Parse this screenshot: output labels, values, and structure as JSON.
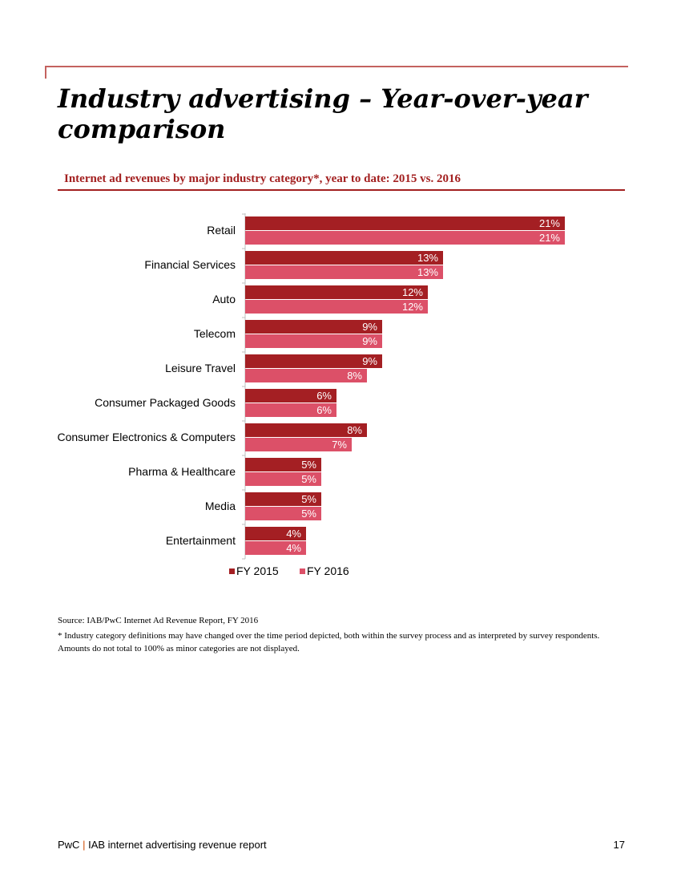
{
  "page": {
    "title": "Industry advertising – Year-over-year comparison",
    "subtitle": "Internet ad revenues by major industry category*, year to date: 2015 vs. 2016",
    "source": "Source: IAB/PwC Internet Ad Revenue Report, FY 2016",
    "footnote": "* Industry category definitions may have changed over the time period depicted, both within the survey process and as interpreted by survey respondents. Amounts do not total to 100% as minor categories are not displayed.",
    "footer": {
      "brand": "PwC",
      "separator": "|",
      "report_name": "IAB internet advertising revenue report",
      "page_number": "17"
    }
  },
  "colors": {
    "accent": "#a32020",
    "series_2015": "#a41f23",
    "series_2016": "#dc5068",
    "rule": "#c4625f"
  },
  "chart_data": {
    "type": "bar",
    "orientation": "horizontal",
    "title": "Internet ad revenues by major industry category*, year to date: 2015 vs. 2016",
    "categories": [
      "Retail",
      "Financial Services",
      "Auto",
      "Telecom",
      "Leisure Travel",
      "Consumer Packaged Goods",
      "Consumer Electronics & Computers",
      "Pharma & Healthcare",
      "Media",
      "Entertainment"
    ],
    "series": [
      {
        "name": "FY 2015",
        "values": [
          21,
          13,
          12,
          9,
          9,
          6,
          8,
          5,
          5,
          4
        ],
        "labels": [
          "21%",
          "13%",
          "12%",
          "9%",
          "9%",
          "6%",
          "8%",
          "5%",
          "5%",
          "4%"
        ]
      },
      {
        "name": "FY 2016",
        "values": [
          21,
          13,
          12,
          9,
          8,
          6,
          7,
          5,
          5,
          4
        ],
        "labels": [
          "21%",
          "13%",
          "12%",
          "9%",
          "8%",
          "6%",
          "7%",
          "5%",
          "5%",
          "4%"
        ]
      }
    ],
    "xlim": [
      0,
      25
    ],
    "unit": "%",
    "grid": false,
    "legend": "bottom"
  }
}
